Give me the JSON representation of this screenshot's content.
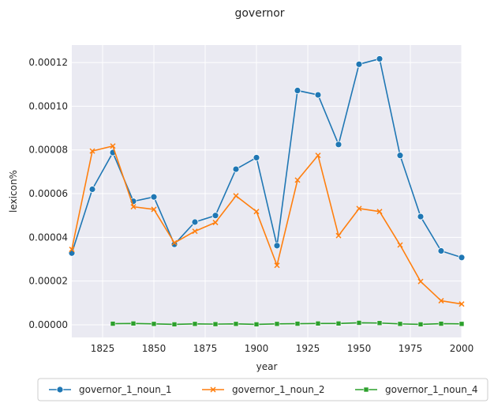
{
  "chart_data": {
    "type": "line",
    "title": "governor",
    "xlabel": "year",
    "ylabel": "lexicon%",
    "xlim": [
      1810,
      2000
    ],
    "ylim": [
      -5.8e-06,
      0.000128
    ],
    "x_ticks": [
      1825,
      1850,
      1875,
      1900,
      1925,
      1950,
      1975,
      2000
    ],
    "x_tick_labels": [
      "1825",
      "1850",
      "1875",
      "1900",
      "1925",
      "1950",
      "1975",
      "2000"
    ],
    "y_ticks": [
      0,
      2e-05,
      4e-05,
      6e-05,
      8e-05,
      0.0001,
      0.00012
    ],
    "y_tick_labels": [
      "0.00000",
      "0.00002",
      "0.00004",
      "0.00006",
      "0.00008",
      "0.00010",
      "0.00012"
    ],
    "grid": true,
    "legend_position": "bottom",
    "series": [
      {
        "name": "governor_1_noun_1",
        "color": "#1f77b4",
        "marker": "circle",
        "x": [
          1810,
          1820,
          1830,
          1840,
          1850,
          1860,
          1870,
          1880,
          1890,
          1900,
          1910,
          1920,
          1930,
          1940,
          1950,
          1960,
          1970,
          1980,
          1990,
          2000
        ],
        "y": [
          3.28e-05,
          6.2e-05,
          7.88e-05,
          5.65e-05,
          5.85e-05,
          3.68e-05,
          4.7e-05,
          5e-05,
          7.12e-05,
          7.65e-05,
          3.62e-05,
          0.0001072,
          0.0001052,
          8.25e-05,
          0.0001192,
          0.0001217,
          7.75e-05,
          4.95e-05,
          3.38e-05,
          3.08e-05
        ]
      },
      {
        "name": "governor_1_noun_2",
        "color": "#ff7f0e",
        "marker": "x",
        "x": [
          1810,
          1820,
          1830,
          1840,
          1850,
          1860,
          1870,
          1880,
          1890,
          1900,
          1910,
          1920,
          1930,
          1940,
          1950,
          1960,
          1970,
          1980,
          1990,
          2000
        ],
        "y": [
          3.45e-05,
          7.95e-05,
          8.18e-05,
          5.4e-05,
          5.28e-05,
          3.75e-05,
          4.28e-05,
          4.68e-05,
          5.9e-05,
          5.18e-05,
          2.72e-05,
          6.62e-05,
          7.75e-05,
          4.08e-05,
          5.32e-05,
          5.18e-05,
          3.65e-05,
          1.98e-05,
          1.1e-05,
          9.5e-06
        ]
      },
      {
        "name": "governor_1_noun_4",
        "color": "#2ca02c",
        "marker": "square",
        "x": [
          1830,
          1840,
          1850,
          1860,
          1870,
          1880,
          1890,
          1900,
          1910,
          1920,
          1930,
          1940,
          1950,
          1960,
          1970,
          1980,
          1990,
          2000
        ],
        "y": [
          5e-07,
          6e-07,
          4e-07,
          2e-07,
          4e-07,
          3e-07,
          4e-07,
          2e-07,
          4e-07,
          5e-07,
          6e-07,
          6e-07,
          9e-07,
          8e-07,
          4e-07,
          2e-07,
          5e-07,
          4e-07
        ]
      }
    ]
  }
}
